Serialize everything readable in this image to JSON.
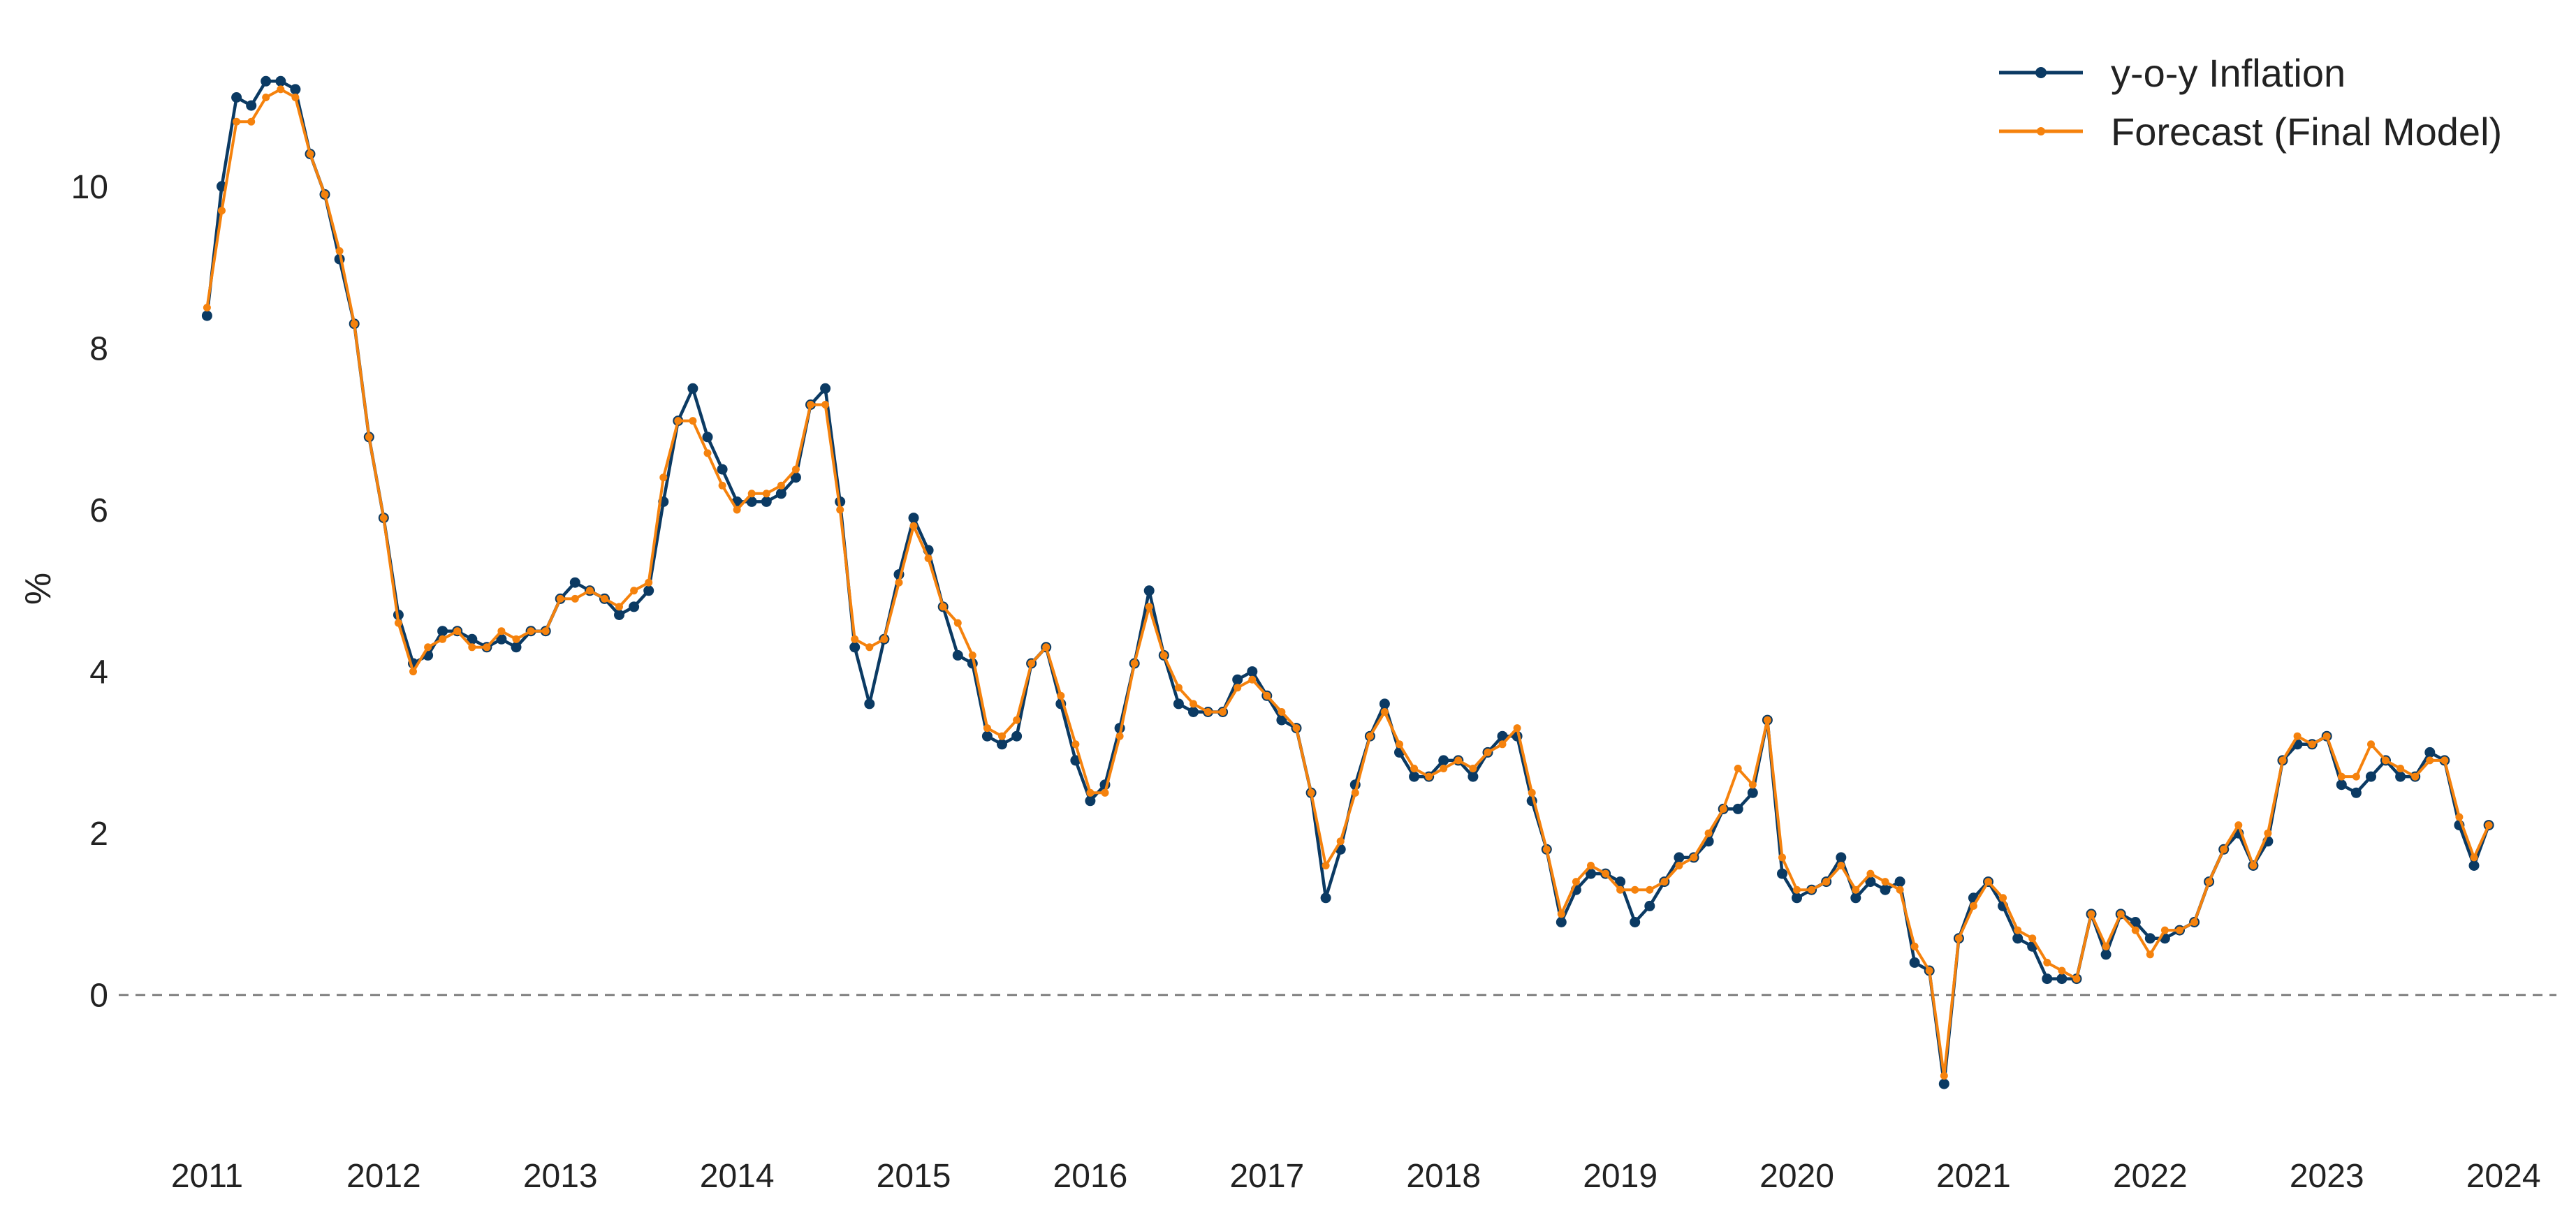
{
  "chart_data": {
    "type": "line",
    "title": "",
    "xlabel": "",
    "ylabel": "%",
    "xlim": [
      2010.5,
      2024.3
    ],
    "ylim": [
      -1.6,
      11.7
    ],
    "x_ticks": [
      "2011",
      "2012",
      "2013",
      "2014",
      "2015",
      "2016",
      "2017",
      "2018",
      "2019",
      "2020",
      "2021",
      "2022",
      "2023",
      "2024"
    ],
    "y_ticks": [
      "0",
      "2",
      "4",
      "6",
      "8",
      "10"
    ],
    "reference_line": {
      "y": 0,
      "style": "dashed",
      "color": "#808080"
    },
    "grid": false,
    "legend": {
      "position": "top-right"
    },
    "x_start": "2011-01",
    "x_step": "month",
    "series": [
      {
        "name": "y-o-y Inflation",
        "color": "#0b3a63",
        "values": [
          8.4,
          10.0,
          11.1,
          11.0,
          11.3,
          11.3,
          11.2,
          10.4,
          9.9,
          9.1,
          8.3,
          6.9,
          5.9,
          4.7,
          4.1,
          4.2,
          4.5,
          4.5,
          4.4,
          4.3,
          4.4,
          4.3,
          4.5,
          4.5,
          4.9,
          5.1,
          5.0,
          4.9,
          4.7,
          4.8,
          5.0,
          6.1,
          7.1,
          7.5,
          6.9,
          6.5,
          6.1,
          6.1,
          6.1,
          6.2,
          6.4,
          7.3,
          7.5,
          6.1,
          4.3,
          3.6,
          4.4,
          5.2,
          5.9,
          5.5,
          4.8,
          4.2,
          4.1,
          3.2,
          3.1,
          3.2,
          4.1,
          4.3,
          3.6,
          2.9,
          2.4,
          2.6,
          3.3,
          4.1,
          5.0,
          4.2,
          3.6,
          3.5,
          3.5,
          3.5,
          3.9,
          4.0,
          3.7,
          3.4,
          3.3,
          2.5,
          1.2,
          1.8,
          2.6,
          3.2,
          3.6,
          3.0,
          2.7,
          2.7,
          2.9,
          2.9,
          2.7,
          3.0,
          3.2,
          3.2,
          2.4,
          1.8,
          0.9,
          1.3,
          1.5,
          1.5,
          1.4,
          0.9,
          1.1,
          1.4,
          1.7,
          1.7,
          1.9,
          2.3,
          2.3,
          2.5,
          3.4,
          1.5,
          1.2,
          1.3,
          1.4,
          1.7,
          1.2,
          1.4,
          1.3,
          1.4,
          0.4,
          0.3,
          -1.1,
          0.7,
          1.2,
          1.4,
          1.1,
          0.7,
          0.6,
          0.2,
          0.2,
          0.2,
          1.0,
          0.5,
          1.0,
          0.9,
          0.7,
          0.7,
          0.8,
          0.9,
          1.4,
          1.8,
          2.0,
          1.6,
          1.9,
          2.9,
          3.1,
          3.1,
          3.2,
          2.6,
          2.5,
          2.7,
          2.9,
          2.7,
          2.7,
          3.0,
          2.9,
          2.1,
          1.6,
          2.1
        ]
      },
      {
        "name": "Forecast (Final Model)",
        "color": "#f5820d",
        "values": [
          8.5,
          9.7,
          10.8,
          10.8,
          11.1,
          11.2,
          11.1,
          10.4,
          9.9,
          9.2,
          8.3,
          6.9,
          5.9,
          4.6,
          4.0,
          4.3,
          4.4,
          4.5,
          4.3,
          4.3,
          4.5,
          4.4,
          4.5,
          4.5,
          4.9,
          4.9,
          5.0,
          4.9,
          4.8,
          5.0,
          5.1,
          6.4,
          7.1,
          7.1,
          6.7,
          6.3,
          6.0,
          6.2,
          6.2,
          6.3,
          6.5,
          7.3,
          7.3,
          6.0,
          4.4,
          4.3,
          4.4,
          5.1,
          5.8,
          5.4,
          4.8,
          4.6,
          4.2,
          3.3,
          3.2,
          3.4,
          4.1,
          4.3,
          3.7,
          3.1,
          2.5,
          2.5,
          3.2,
          4.1,
          4.8,
          4.2,
          3.8,
          3.6,
          3.5,
          3.5,
          3.8,
          3.9,
          3.7,
          3.5,
          3.3,
          2.5,
          1.6,
          1.9,
          2.5,
          3.2,
          3.5,
          3.1,
          2.8,
          2.7,
          2.8,
          2.9,
          2.8,
          3.0,
          3.1,
          3.3,
          2.5,
          1.8,
          1.0,
          1.4,
          1.6,
          1.5,
          1.3,
          1.3,
          1.3,
          1.4,
          1.6,
          1.7,
          2.0,
          2.3,
          2.8,
          2.6,
          3.4,
          1.7,
          1.3,
          1.3,
          1.4,
          1.6,
          1.3,
          1.5,
          1.4,
          1.3,
          0.6,
          0.3,
          -1.0,
          0.7,
          1.1,
          1.4,
          1.2,
          0.8,
          0.7,
          0.4,
          0.3,
          0.2,
          1.0,
          0.6,
          1.0,
          0.8,
          0.5,
          0.8,
          0.8,
          0.9,
          1.4,
          1.8,
          2.1,
          1.6,
          2.0,
          2.9,
          3.2,
          3.1,
          3.2,
          2.7,
          2.7,
          3.1,
          2.9,
          2.8,
          2.7,
          2.9,
          2.9,
          2.2,
          1.7,
          2.1
        ]
      }
    ]
  }
}
